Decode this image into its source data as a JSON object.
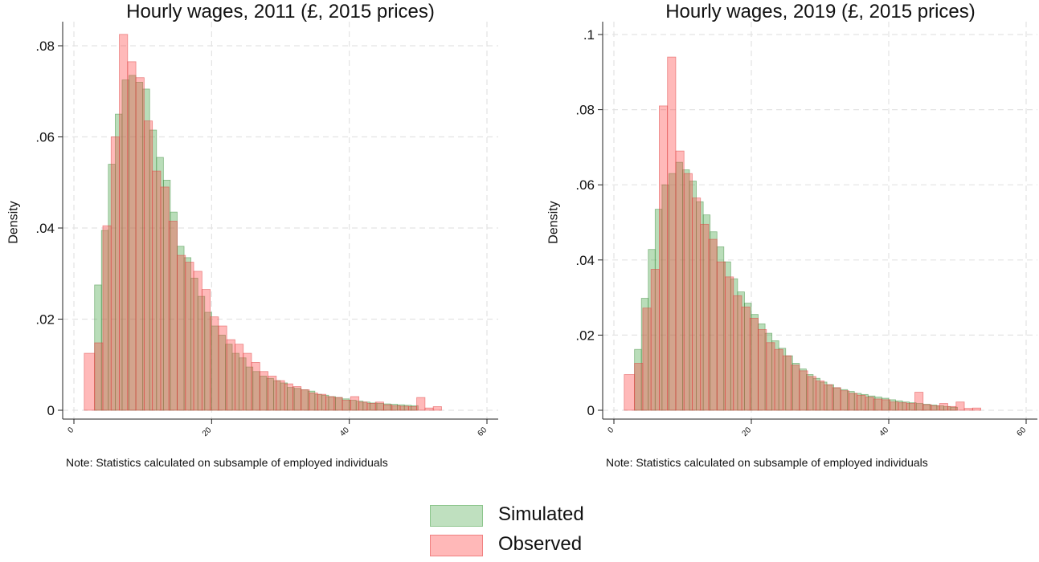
{
  "legend": {
    "simulated_label": "Simulated",
    "observed_label": "Observed",
    "simulated_color": "#bfe0bf",
    "simulated_edge": "#8cc58c",
    "observed_color": "#ffb8b8",
    "observed_edge": "#f08080"
  },
  "chart_data": [
    {
      "type": "bar",
      "title": "Hourly wages, 2011 (£, 2015 prices)",
      "ylabel": "Density",
      "xlabel": "",
      "note": "Note: Statistics calculated on subsample of employed individuals",
      "xlim": [
        0,
        60
      ],
      "ylim": [
        0,
        0.085
      ],
      "xticks": [
        {
          "v": 0,
          "label": "0"
        },
        {
          "v": 20,
          "label": "20"
        },
        {
          "v": 40,
          "label": "40"
        },
        {
          "v": 60,
          "label": "60"
        }
      ],
      "yticks": [
        {
          "v": 0,
          "label": "0"
        },
        {
          "v": 0.02,
          "label": ".02"
        },
        {
          "v": 0.04,
          "label": ".04"
        },
        {
          "v": 0.06,
          "label": ".06"
        },
        {
          "v": 0.08,
          "label": ".08"
        }
      ],
      "grid": true,
      "series": [
        {
          "name": "Simulated",
          "bins": [
            [
              3,
              4,
              0.0275
            ],
            [
              4,
              5,
              0.0395
            ],
            [
              5,
              6,
              0.054
            ],
            [
              6,
              7,
              0.065
            ],
            [
              7,
              8,
              0.0725
            ],
            [
              8,
              9,
              0.0735
            ],
            [
              9,
              10,
              0.072
            ],
            [
              10,
              11,
              0.0705
            ],
            [
              11,
              12,
              0.0615
            ],
            [
              12,
              13,
              0.0555
            ],
            [
              13,
              14,
              0.0505
            ],
            [
              14,
              15,
              0.0435
            ],
            [
              15,
              16,
              0.036
            ],
            [
              16,
              17,
              0.0335
            ],
            [
              17,
              18,
              0.029
            ],
            [
              18,
              19,
              0.025
            ],
            [
              19,
              20,
              0.0215
            ],
            [
              20,
              21,
              0.0185
            ],
            [
              21,
              22,
              0.0165
            ],
            [
              22,
              23,
              0.0145
            ],
            [
              23,
              24,
              0.0125
            ],
            [
              24,
              25,
              0.0115
            ],
            [
              25,
              26,
              0.0095
            ],
            [
              26,
              27,
              0.0085
            ],
            [
              27,
              28,
              0.0075
            ],
            [
              28,
              29,
              0.007
            ],
            [
              29,
              30,
              0.0065
            ],
            [
              30,
              31,
              0.006
            ],
            [
              31,
              32,
              0.005
            ],
            [
              32,
              33,
              0.0048
            ],
            [
              33,
              34,
              0.0045
            ],
            [
              34,
              35,
              0.0042
            ],
            [
              35,
              36,
              0.0035
            ],
            [
              36,
              37,
              0.0033
            ],
            [
              37,
              38,
              0.003
            ],
            [
              38,
              39,
              0.0028
            ],
            [
              39,
              40,
              0.0025
            ],
            [
              40,
              41,
              0.0022
            ],
            [
              41,
              42,
              0.002
            ],
            [
              42,
              43,
              0.0018
            ],
            [
              43,
              44,
              0.0016
            ],
            [
              44,
              45,
              0.0015
            ],
            [
              45,
              46,
              0.0014
            ],
            [
              46,
              47,
              0.0013
            ],
            [
              47,
              48,
              0.0012
            ],
            [
              48,
              49,
              0.0011
            ],
            [
              49,
              50,
              0.001
            ]
          ]
        },
        {
          "name": "Observed",
          "bins": [
            [
              1.5,
              3,
              0.0125
            ],
            [
              3,
              4.2,
              0.0148
            ],
            [
              4.2,
              5.4,
              0.0405
            ],
            [
              5.4,
              6.6,
              0.06
            ],
            [
              6.6,
              7.8,
              0.0825
            ],
            [
              7.8,
              9,
              0.0765
            ],
            [
              9,
              10.2,
              0.073
            ],
            [
              10.2,
              11.4,
              0.0635
            ],
            [
              11.4,
              12.6,
              0.0525
            ],
            [
              12.6,
              13.8,
              0.049
            ],
            [
              13.8,
              15,
              0.0415
            ],
            [
              15,
              16.2,
              0.034
            ],
            [
              16.2,
              17.4,
              0.0325
            ],
            [
              17.4,
              18.6,
              0.0305
            ],
            [
              18.6,
              19.8,
              0.0265
            ],
            [
              19.8,
              21,
              0.0205
            ],
            [
              21,
              22.2,
              0.0185
            ],
            [
              22.2,
              23.4,
              0.0155
            ],
            [
              23.4,
              24.6,
              0.0145
            ],
            [
              24.6,
              25.8,
              0.0125
            ],
            [
              25.8,
              27,
              0.0105
            ],
            [
              27,
              28.2,
              0.0085
            ],
            [
              28.2,
              29.4,
              0.0075
            ],
            [
              29.4,
              30.6,
              0.0065
            ],
            [
              30.6,
              31.8,
              0.0058
            ],
            [
              31.8,
              33,
              0.0052
            ],
            [
              33,
              34.2,
              0.0045
            ],
            [
              34.2,
              35.4,
              0.0038
            ],
            [
              35.4,
              36.6,
              0.0035
            ],
            [
              36.6,
              37.8,
              0.003
            ],
            [
              37.8,
              39,
              0.0028
            ],
            [
              39,
              40.2,
              0.0022
            ],
            [
              40.2,
              41.4,
              0.003
            ],
            [
              41.4,
              42.6,
              0.0018
            ],
            [
              42.6,
              43.8,
              0.0015
            ],
            [
              43.8,
              45,
              0.0018
            ],
            [
              45,
              46.2,
              0.0012
            ],
            [
              46.2,
              47.4,
              0.001
            ],
            [
              47.4,
              48.6,
              0.0009
            ],
            [
              48.6,
              49.8,
              0.0008
            ],
            [
              49.8,
              51,
              0.0028
            ],
            [
              51,
              52.2,
              0.0005
            ],
            [
              52.2,
              53.4,
              0.0008
            ]
          ]
        }
      ]
    },
    {
      "type": "bar",
      "title": "Hourly wages, 2019 (£, 2015 prices)",
      "ylabel": "Density",
      "xlabel": "",
      "note": "Note: Statistics calculated on subsample of employed individuals",
      "xlim": [
        0,
        60
      ],
      "ylim": [
        0,
        0.104
      ],
      "xticks": [
        {
          "v": 0,
          "label": "0"
        },
        {
          "v": 20,
          "label": "20"
        },
        {
          "v": 40,
          "label": "40"
        },
        {
          "v": 60,
          "label": "60"
        }
      ],
      "yticks": [
        {
          "v": 0,
          "label": "0"
        },
        {
          "v": 0.02,
          "label": ".02"
        },
        {
          "v": 0.04,
          "label": ".04"
        },
        {
          "v": 0.06,
          "label": ".06"
        },
        {
          "v": 0.08,
          "label": ".08"
        },
        {
          "v": 0.1,
          "label": ".1"
        }
      ],
      "grid": true,
      "series": [
        {
          "name": "Simulated",
          "bins": [
            [
              3,
              4,
              0.0162
            ],
            [
              4,
              5,
              0.0298
            ],
            [
              5,
              6,
              0.0428
            ],
            [
              6,
              7,
              0.0535
            ],
            [
              7,
              8,
              0.06
            ],
            [
              8,
              9,
              0.063
            ],
            [
              9,
              10,
              0.066
            ],
            [
              10,
              11,
              0.064
            ],
            [
              11,
              12,
              0.061
            ],
            [
              12,
              13,
              0.0555
            ],
            [
              13,
              14,
              0.052
            ],
            [
              14,
              15,
              0.0475
            ],
            [
              15,
              16,
              0.0435
            ],
            [
              16,
              17,
              0.0395
            ],
            [
              17,
              18,
              0.035
            ],
            [
              18,
              19,
              0.0315
            ],
            [
              19,
              20,
              0.0285
            ],
            [
              20,
              21,
              0.0255
            ],
            [
              21,
              22,
              0.023
            ],
            [
              22,
              23,
              0.0205
            ],
            [
              23,
              24,
              0.0185
            ],
            [
              24,
              25,
              0.0165
            ],
            [
              25,
              26,
              0.0145
            ],
            [
              26,
              27,
              0.0125
            ],
            [
              27,
              28,
              0.011
            ],
            [
              28,
              29,
              0.0095
            ],
            [
              29,
              30,
              0.0085
            ],
            [
              30,
              31,
              0.0075
            ],
            [
              31,
              32,
              0.0068
            ],
            [
              32,
              33,
              0.006
            ],
            [
              33,
              34,
              0.0055
            ],
            [
              34,
              35,
              0.005
            ],
            [
              35,
              36,
              0.0045
            ],
            [
              36,
              37,
              0.0042
            ],
            [
              37,
              38,
              0.0038
            ],
            [
              38,
              39,
              0.0035
            ],
            [
              39,
              40,
              0.0032
            ],
            [
              40,
              41,
              0.0028
            ],
            [
              41,
              42,
              0.0025
            ],
            [
              42,
              43,
              0.0022
            ],
            [
              43,
              44,
              0.002
            ],
            [
              44,
              45,
              0.0018
            ],
            [
              45,
              46,
              0.0016
            ],
            [
              46,
              47,
              0.0014
            ],
            [
              47,
              48,
              0.0012
            ],
            [
              48,
              49,
              0.001
            ],
            [
              49,
              50,
              0.0008
            ]
          ]
        },
        {
          "name": "Observed",
          "bins": [
            [
              1.5,
              3,
              0.0095
            ],
            [
              3,
              4.2,
              0.0125
            ],
            [
              4.2,
              5.4,
              0.0272
            ],
            [
              5.4,
              6.6,
              0.0375
            ],
            [
              6.6,
              7.8,
              0.081
            ],
            [
              7.8,
              9,
              0.094
            ],
            [
              9,
              10.2,
              0.069
            ],
            [
              10.2,
              11.4,
              0.063
            ],
            [
              11.4,
              12.6,
              0.0565
            ],
            [
              12.6,
              13.8,
              0.0495
            ],
            [
              13.8,
              15,
              0.0455
            ],
            [
              15,
              16.2,
              0.0395
            ],
            [
              16.2,
              17.4,
              0.0355
            ],
            [
              17.4,
              18.6,
              0.0305
            ],
            [
              18.6,
              19.8,
              0.0275
            ],
            [
              19.8,
              21,
              0.0245
            ],
            [
              21,
              22.2,
              0.0215
            ],
            [
              22.2,
              23.4,
              0.018
            ],
            [
              23.4,
              24.6,
              0.0162
            ],
            [
              24.6,
              25.8,
              0.0145
            ],
            [
              25.8,
              27,
              0.012
            ],
            [
              27,
              28.2,
              0.0105
            ],
            [
              28.2,
              29.4,
              0.009
            ],
            [
              29.4,
              30.6,
              0.0078
            ],
            [
              30.6,
              31.8,
              0.0068
            ],
            [
              31.8,
              33,
              0.006
            ],
            [
              33,
              34.2,
              0.0052
            ],
            [
              34.2,
              35.4,
              0.0045
            ],
            [
              35.4,
              36.6,
              0.004
            ],
            [
              36.6,
              37.8,
              0.0035
            ],
            [
              37.8,
              39,
              0.003
            ],
            [
              39,
              40.2,
              0.0028
            ],
            [
              40.2,
              41.4,
              0.0022
            ],
            [
              41.4,
              42.6,
              0.002
            ],
            [
              42.6,
              43.8,
              0.0018
            ],
            [
              43.8,
              45,
              0.0048
            ],
            [
              45,
              46.2,
              0.0015
            ],
            [
              46.2,
              47.4,
              0.0012
            ],
            [
              47.4,
              48.6,
              0.0018
            ],
            [
              48.6,
              49.8,
              0.001
            ],
            [
              49.8,
              51,
              0.0022
            ],
            [
              51,
              52.2,
              0.0005
            ],
            [
              52.2,
              53.4,
              0.0006
            ]
          ]
        }
      ]
    }
  ]
}
